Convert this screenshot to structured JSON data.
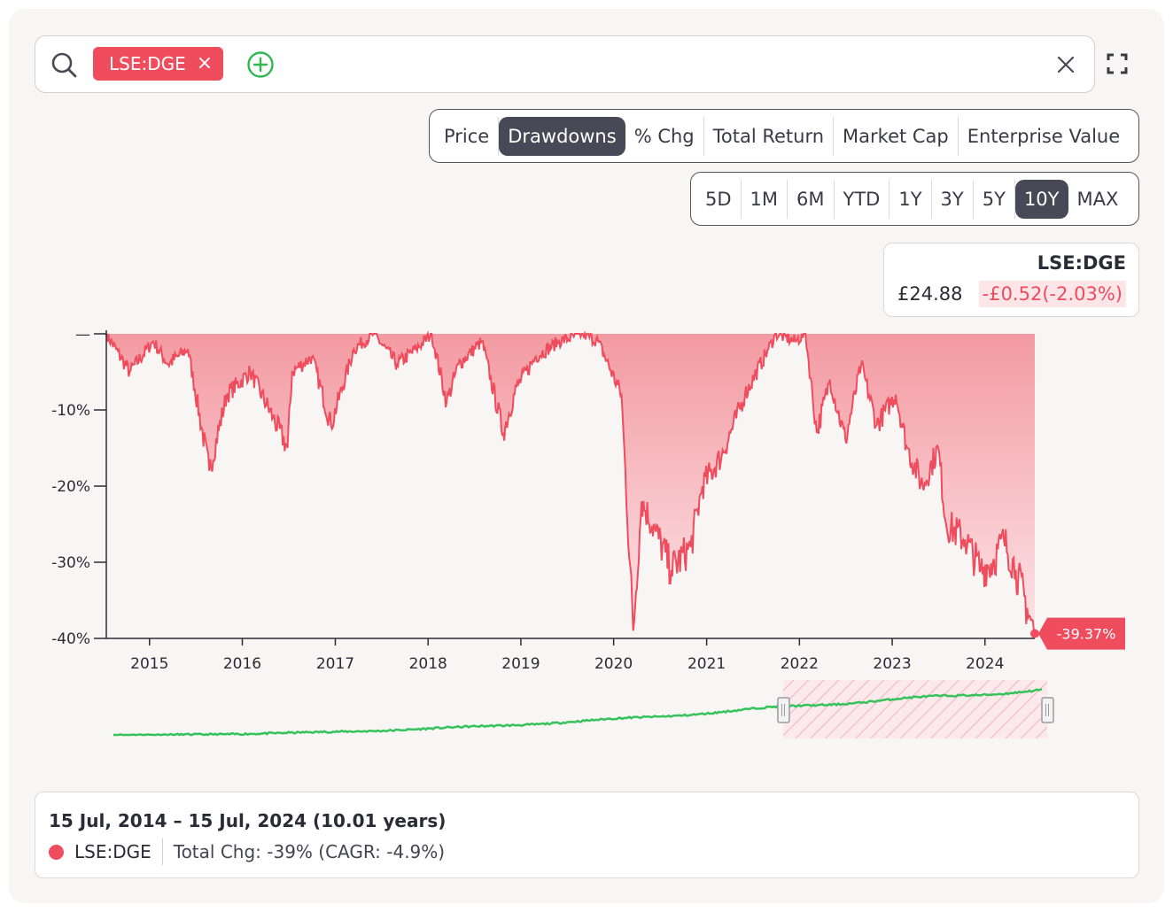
{
  "search": {
    "chip_label": "LSE:DGE",
    "chip_remove": "×"
  },
  "metric_tabs": [
    {
      "label": "Price",
      "active": false
    },
    {
      "label": "Drawdowns",
      "active": true
    },
    {
      "label": "% Chg",
      "active": false
    },
    {
      "label": "Total Return",
      "active": false
    },
    {
      "label": "Market Cap",
      "active": false
    },
    {
      "label": "Enterprise Value",
      "active": false
    }
  ],
  "range_tabs": [
    {
      "label": "5D",
      "active": false
    },
    {
      "label": "1M",
      "active": false
    },
    {
      "label": "6M",
      "active": false
    },
    {
      "label": "YTD",
      "active": false
    },
    {
      "label": "1Y",
      "active": false
    },
    {
      "label": "3Y",
      "active": false
    },
    {
      "label": "5Y",
      "active": false
    },
    {
      "label": "10Y",
      "active": true
    },
    {
      "label": "MAX",
      "active": false
    }
  ],
  "quote": {
    "ticker": "LSE:DGE",
    "price": "£24.88",
    "change": "-£0.52(-2.03%)"
  },
  "colors": {
    "accent": "#ef4c5e",
    "active_tab": "#484856",
    "navigator_line": "#36c25a"
  },
  "chart_data": {
    "type": "area",
    "series": [
      {
        "name": "LSE:DGE"
      }
    ],
    "x": [
      "2014-07-15",
      "2014-10-15",
      "2015-01-15",
      "2015-03-15",
      "2015-06-01",
      "2015-08-24",
      "2015-11-01",
      "2016-02-01",
      "2016-05-01",
      "2016-06-27",
      "2016-07-15",
      "2016-10-01",
      "2016-12-15",
      "2017-03-15",
      "2017-06-01",
      "2017-09-01",
      "2017-11-15",
      "2018-01-15",
      "2018-03-15",
      "2018-05-01",
      "2018-08-01",
      "2018-10-24",
      "2018-12-15",
      "2019-03-01",
      "2019-06-01",
      "2019-09-01",
      "2019-11-01",
      "2020-02-01",
      "2020-03-18",
      "2020-04-20",
      "2020-06-15",
      "2020-08-15",
      "2020-10-30",
      "2020-12-15",
      "2021-03-01",
      "2021-06-01",
      "2021-09-01",
      "2021-10-01",
      "2021-12-15",
      "2022-01-25",
      "2022-03-10",
      "2022-05-01",
      "2022-07-01",
      "2022-09-01",
      "2022-11-01",
      "2023-01-15",
      "2023-03-01",
      "2023-05-01",
      "2023-07-01",
      "2023-08-01",
      "2023-10-15",
      "2023-12-15",
      "2024-02-01",
      "2024-03-15",
      "2024-05-01",
      "2024-06-15",
      "2024-07-15"
    ],
    "values": [
      0,
      -5,
      -1,
      -4,
      -2,
      -18,
      -8,
      -5,
      -11,
      -15,
      -5,
      -3,
      -12,
      -2,
      0,
      -4,
      -2,
      0,
      -9,
      -4,
      -1,
      -13,
      -7,
      -3,
      -1,
      0,
      -1,
      -8,
      -39,
      -22,
      -26,
      -31,
      -28,
      -20,
      -16,
      -8,
      -2,
      0,
      -1,
      0,
      -13,
      -6,
      -14,
      -4,
      -12,
      -8,
      -15,
      -20,
      -15,
      -25,
      -27,
      -31,
      -30,
      -27,
      -31,
      -36,
      -39.37
    ],
    "last_label": "-39.37%",
    "y_ticks": [
      0,
      -10,
      -20,
      -30,
      -40
    ],
    "y_tick_labels": [
      "—",
      "-10%",
      "-20%",
      "-30%",
      "-40%"
    ],
    "x_tick_labels": [
      "2015",
      "2016",
      "2017",
      "2018",
      "2019",
      "2020",
      "2021",
      "2022",
      "2023",
      "2024"
    ],
    "ylim": [
      -40,
      0
    ],
    "xlim": [
      "2014-07-15",
      "2024-07-15"
    ],
    "grid": false,
    "legend": "none",
    "navigator": {
      "selection": [
        "2021-10-01",
        "2024-07-15"
      ]
    }
  },
  "summary": {
    "range": "15 Jul, 2014 – 15 Jul, 2024 (10.01 years)",
    "ticker": "LSE:DGE",
    "stat": "Total Chg: -39% (CAGR: -4.9%)"
  }
}
